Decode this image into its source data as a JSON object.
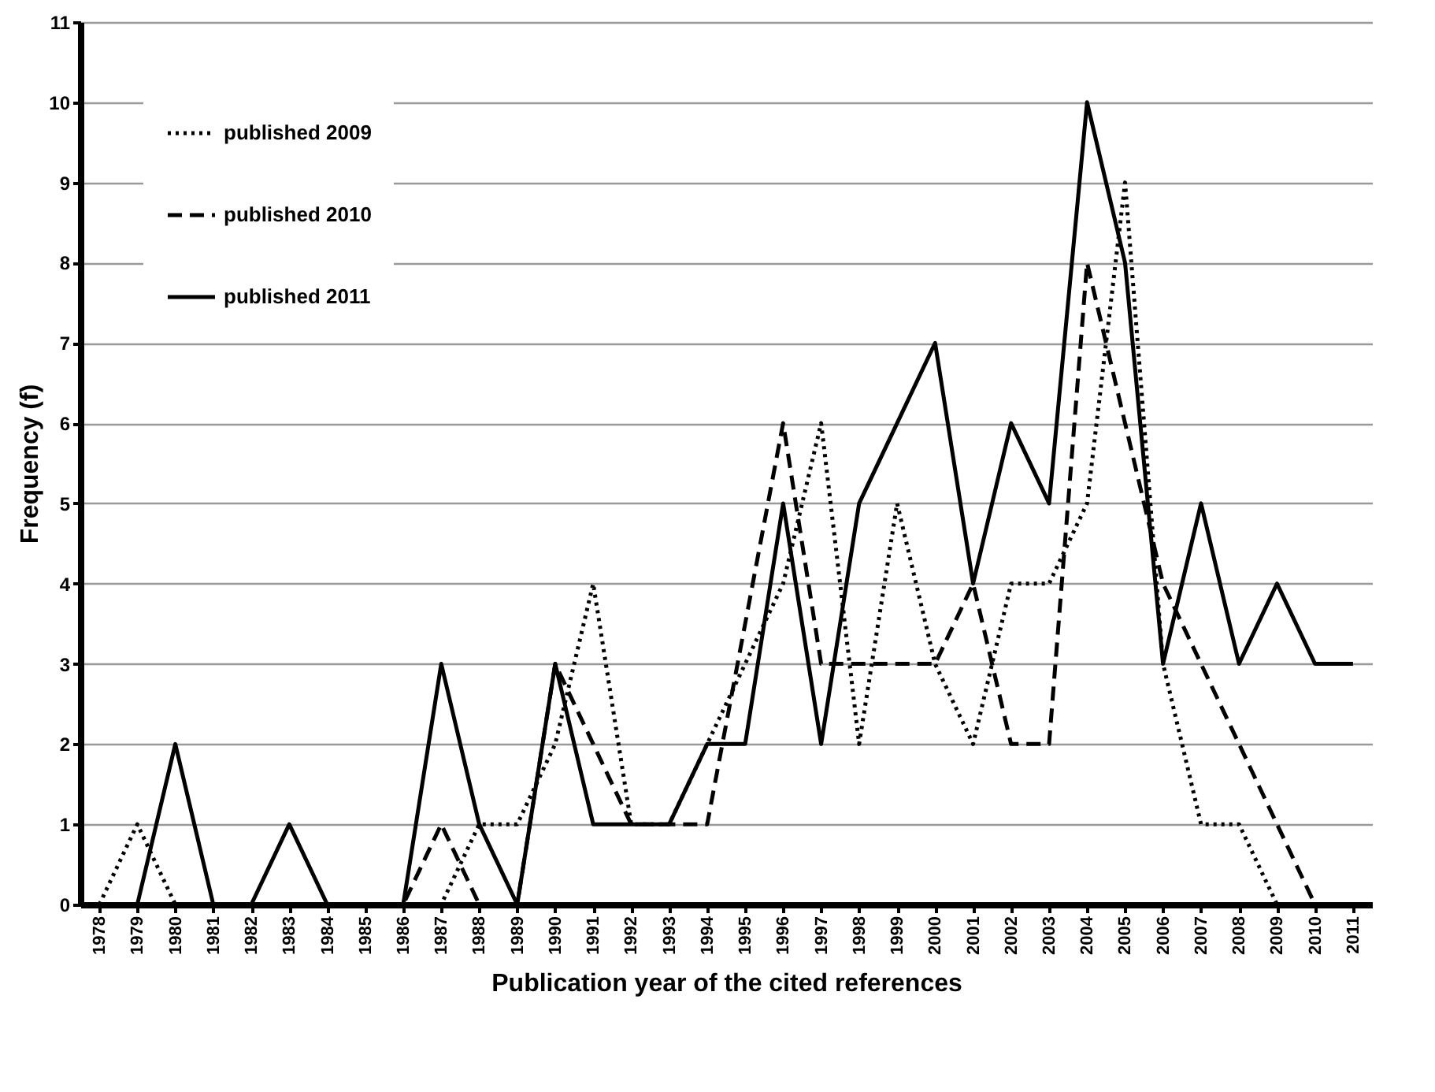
{
  "chart_data": {
    "type": "line",
    "xlabel": "Publication year of the cited references",
    "ylabel": "Frequency (f)",
    "categories": [
      "1978",
      "1979",
      "1980",
      "1981",
      "1982",
      "1983",
      "1984",
      "1985",
      "1986",
      "1987",
      "1988",
      "1989",
      "1990",
      "1991",
      "1992",
      "1993",
      "1994",
      "1995",
      "1996",
      "1997",
      "1998",
      "1999",
      "2000",
      "2001",
      "2002",
      "2003",
      "2004",
      "2005",
      "2006",
      "2007",
      "2008",
      "2009",
      "2010",
      "2011"
    ],
    "series": [
      {
        "name": "published 2009",
        "color": "#000000",
        "line_style": "dotted",
        "values": [
          0,
          1,
          0,
          0,
          0,
          0,
          0,
          0,
          0,
          0,
          1,
          1,
          2,
          4,
          1,
          1,
          2,
          3,
          4,
          6,
          2,
          5,
          3,
          2,
          4,
          4,
          5,
          9,
          3,
          1,
          1,
          0,
          null,
          null
        ]
      },
      {
        "name": "published 2010",
        "color": "#000000",
        "line_style": "dashed",
        "values": [
          0,
          0,
          0,
          0,
          0,
          0,
          0,
          0,
          0,
          1,
          0,
          0,
          3,
          2,
          1,
          1,
          1,
          3.5,
          6,
          3,
          3,
          3,
          3,
          4,
          2,
          2,
          8,
          6,
          4,
          3,
          2,
          1,
          0,
          null
        ]
      },
      {
        "name": "published 2011",
        "color": "#000000",
        "line_style": "solid",
        "values": [
          0,
          0,
          2,
          0,
          0,
          1,
          0,
          0,
          0,
          3,
          1,
          0,
          3,
          1,
          1,
          1,
          2,
          2,
          5,
          2,
          5,
          6,
          7,
          4,
          6,
          5,
          10,
          8,
          3,
          5,
          3,
          4,
          3,
          3
        ]
      }
    ],
    "ylim": [
      0,
      11
    ],
    "yticks": [
      0,
      1,
      2,
      3,
      4,
      5,
      6,
      7,
      8,
      9,
      10,
      11
    ],
    "grid": "y",
    "legend": "top left",
    "marker": "none"
  }
}
